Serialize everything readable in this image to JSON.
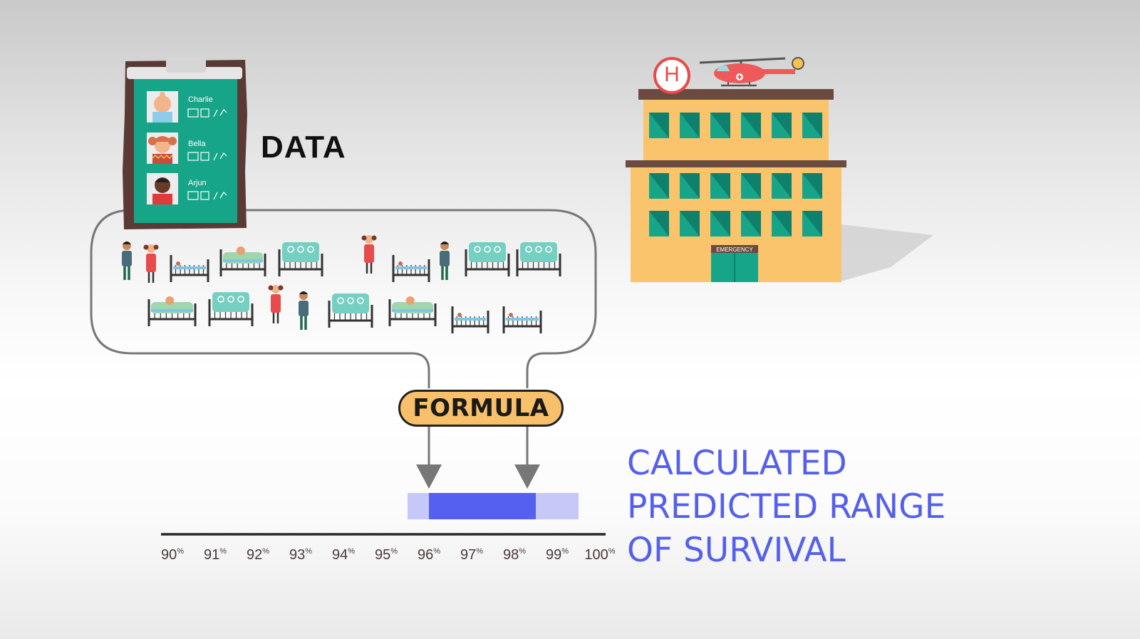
{
  "labels": {
    "data": "DATA",
    "formula": "FORMULA",
    "result_lines": [
      "CALCULATED",
      "PREDICTED RANGE",
      "OF SURVIVAL"
    ],
    "emergency": "EMERGENCY",
    "helipad": "H"
  },
  "clipboard": {
    "patients": [
      {
        "name": "Charlie",
        "avatar": "baby-avatar-icon"
      },
      {
        "name": "Bella",
        "avatar": "girl-avatar-icon"
      },
      {
        "name": "Arjun",
        "avatar": "boy-avatar-icon"
      }
    ]
  },
  "scale": {
    "ticks": [
      {
        "value": "90",
        "unit": "%"
      },
      {
        "value": "91",
        "unit": "%"
      },
      {
        "value": "92",
        "unit": "%"
      },
      {
        "value": "93",
        "unit": "%"
      },
      {
        "value": "94",
        "unit": "%"
      },
      {
        "value": "95",
        "unit": "%"
      },
      {
        "value": "96",
        "unit": "%"
      },
      {
        "value": "97",
        "unit": "%"
      },
      {
        "value": "98",
        "unit": "%"
      },
      {
        "value": "99",
        "unit": "%"
      },
      {
        "value": "100",
        "unit": "%"
      }
    ],
    "min": 90,
    "max": 100,
    "predicted_range": [
      96,
      98.5
    ],
    "outer_range": [
      95.5,
      99.5
    ]
  },
  "colors": {
    "range_core": "#5560f0",
    "range_halo": "#c6c9f7",
    "result_text": "#5560ea",
    "formula_fill": "#f8c06a",
    "teal": "#17a58a",
    "clipboard_frame": "#5b3a35",
    "building": "#f9c46c"
  },
  "icons": [
    "clipboard-icon",
    "hospital-building-icon",
    "helicopter-icon",
    "helipad-icon",
    "hospital-bed-icon",
    "person-icon"
  ]
}
